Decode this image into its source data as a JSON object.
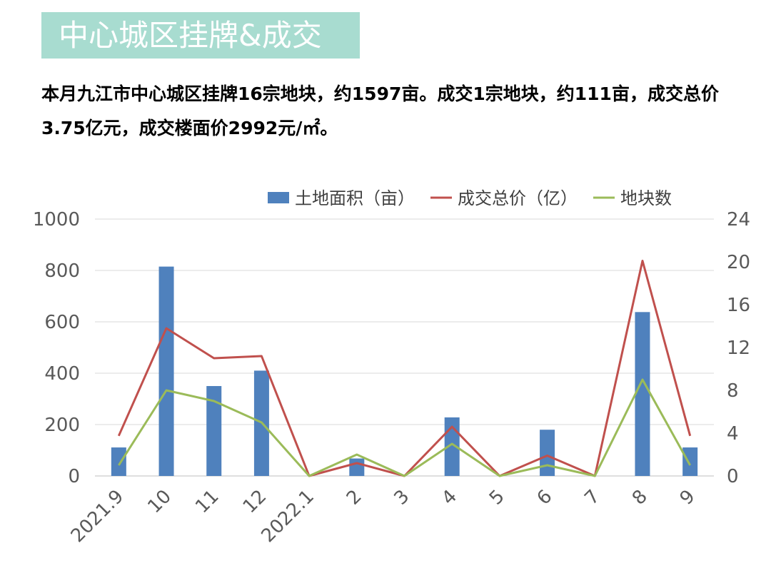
{
  "header": {
    "title": "中心城区挂牌&成交",
    "summary": "本月九江市中心城区挂牌16宗地块，约1597亩。成交1宗地块，约111亩，成交总价3.75亿元，成交楼面价2992元/㎡。"
  },
  "chart_data": {
    "type": "bar",
    "categories": [
      "2021.9",
      "10",
      "11",
      "12",
      "2022.1",
      "2",
      "3",
      "4",
      "5",
      "6",
      "7",
      "8",
      "9"
    ],
    "series": [
      {
        "name": "土地面积（亩）",
        "type": "bar",
        "axis": "left",
        "color": "#4f81bd",
        "values": [
          111,
          815,
          350,
          410,
          0,
          68,
          0,
          228,
          0,
          180,
          0,
          638,
          111
        ]
      },
      {
        "name": "成交总价（亿）",
        "type": "line",
        "axis": "right",
        "color": "#c0504d",
        "values": [
          3.75,
          13.8,
          11.0,
          11.2,
          0,
          1.2,
          0,
          4.6,
          0,
          1.9,
          0,
          20.1,
          3.75
        ]
      },
      {
        "name": "地块数",
        "type": "line",
        "axis": "right",
        "color": "#9bbb59",
        "values": [
          1,
          8,
          7,
          5,
          0,
          2,
          0,
          3,
          0,
          1,
          0,
          9,
          1
        ]
      }
    ],
    "left_axis": {
      "ylim": [
        0,
        1000
      ],
      "ticks": [
        0,
        200,
        400,
        600,
        800,
        1000
      ]
    },
    "right_axis": {
      "ylim": [
        0,
        24
      ],
      "ticks": [
        0,
        4,
        8,
        12,
        16,
        20,
        24
      ]
    },
    "grid": true,
    "legend_position": "top-right"
  }
}
